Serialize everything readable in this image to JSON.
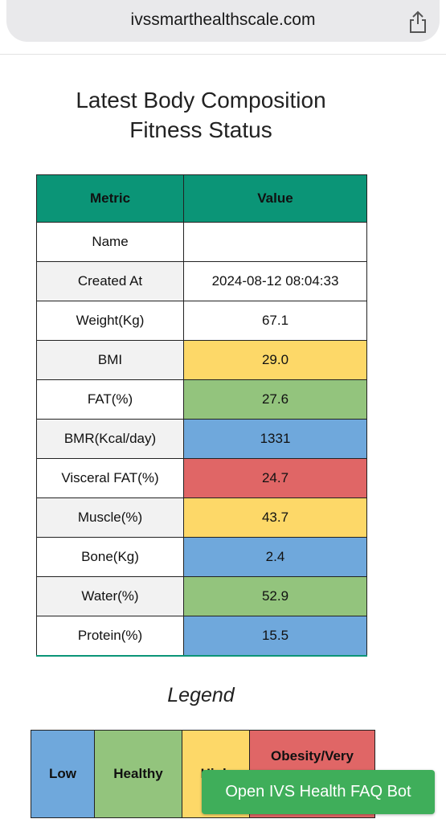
{
  "browser": {
    "url": "ivssmarthealthscale.com"
  },
  "page": {
    "title": "Latest Body Composition Fitness Status"
  },
  "table": {
    "header": [
      "Metric",
      "Value"
    ],
    "header_color": "#0b9577",
    "rows": [
      {
        "metric": "Name"
      },
      {
        "metric": "Created At",
        "value": "2024-08-12 08:04:33"
      },
      {
        "metric": "Weight(Kg)",
        "value": "67.1"
      },
      {
        "metric": "BMI",
        "value": "29.0",
        "color": "#fdd868"
      },
      {
        "metric": "FAT(%)",
        "value": "27.6",
        "color": "#93c47d"
      },
      {
        "metric": "BMR(Kcal/day)",
        "value": "1331",
        "color": "#6fa8dc"
      },
      {
        "metric": "Visceral FAT(%)",
        "value": "24.7",
        "color": "#e06666"
      },
      {
        "metric": "Muscle(%)",
        "value": "43.7",
        "color": "#fdd868"
      },
      {
        "metric": "Bone(Kg)",
        "value": "2.4",
        "color": "#6fa8dc"
      },
      {
        "metric": "Water(%)",
        "value": "52.9",
        "color": "#93c47d"
      },
      {
        "metric": "Protein(%)",
        "value": "15.5",
        "color": "#6fa8dc"
      }
    ]
  },
  "legend": {
    "title": "Legend",
    "items": [
      {
        "label": "Low",
        "color": "#6fa8dc"
      },
      {
        "label": "Healthy",
        "color": "#93c47d"
      },
      {
        "label": "High",
        "color": "#fdd868"
      },
      {
        "label": "Obesity/Very",
        "color": "#e06666"
      }
    ]
  },
  "button": {
    "label": "Open IVS Health FAQ Bot"
  }
}
